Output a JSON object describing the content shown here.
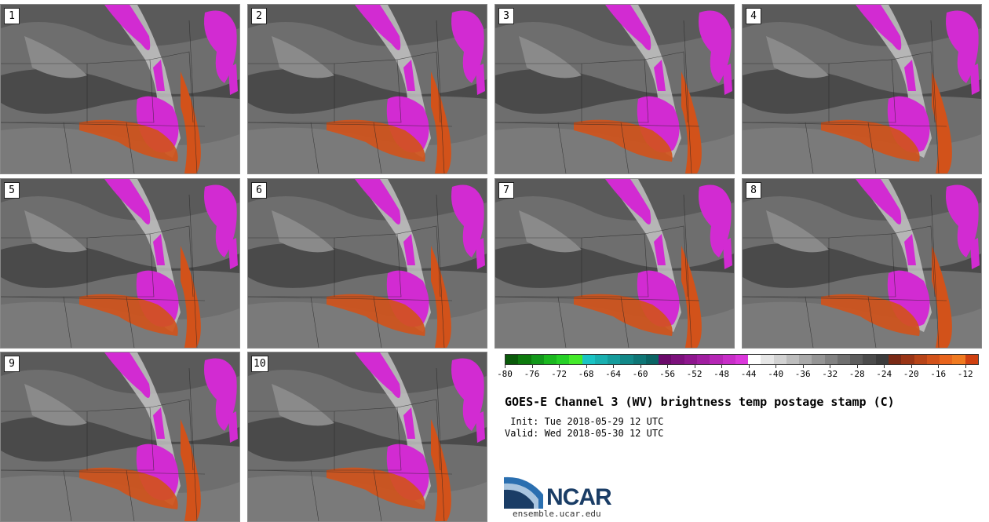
{
  "panels": [
    {
      "label": "1"
    },
    {
      "label": "2"
    },
    {
      "label": "3"
    },
    {
      "label": "4"
    },
    {
      "label": "5"
    },
    {
      "label": "6"
    },
    {
      "label": "7"
    },
    {
      "label": "8"
    },
    {
      "label": "9"
    },
    {
      "label": "10"
    }
  ],
  "colorbar": {
    "colors": [
      "#0a5a0a",
      "#0d7a0d",
      "#12981a",
      "#1bb81f",
      "#26d026",
      "#44ea2a",
      "#1ac4c4",
      "#19b0b0",
      "#159c9c",
      "#128888",
      "#0e7676",
      "#0b6464",
      "#6a0a6a",
      "#7c117c",
      "#8e178e",
      "#a01ea0",
      "#b526b5",
      "#c82ec8",
      "#db38db",
      "#ffffff",
      "#e6e6e6",
      "#d2d2d2",
      "#bdbdbd",
      "#a9a9a9",
      "#959595",
      "#828282",
      "#6f6f6f",
      "#5d5d5d",
      "#4b4b4b",
      "#3c3c3c",
      "#7a2a16",
      "#9a3516",
      "#b84418",
      "#d2521a",
      "#e8641c",
      "#f07a20",
      "#d04010"
    ],
    "tick_labels": [
      "-80",
      "-76",
      "-72",
      "-68",
      "-64",
      "-60",
      "-56",
      "-52",
      "-48",
      "-44",
      "-40",
      "-36",
      "-32",
      "-28",
      "-24",
      "-20",
      "-16",
      "-12"
    ],
    "tick_values": [
      -80,
      -76,
      -72,
      -68,
      -64,
      -60,
      -56,
      -52,
      -48,
      -44,
      -40,
      -36,
      -32,
      -28,
      -24,
      -20,
      -16,
      -12
    ],
    "range": [
      -80,
      -10
    ]
  },
  "title": "GOES-E Channel 3 (WV) brightness temp postage stamp (C)",
  "init": " Init: Tue 2018-05-29 12 UTC",
  "valid": "Valid: Wed 2018-05-30 12 UTC",
  "logo": "NCAR",
  "site": "ensemble.ucar.edu",
  "palette": {
    "background": "#6e6e6e",
    "magenta": "#d22bd2",
    "orange": "#d2521a",
    "dark": "#4a4a4a",
    "light": "#c8c8c8"
  }
}
